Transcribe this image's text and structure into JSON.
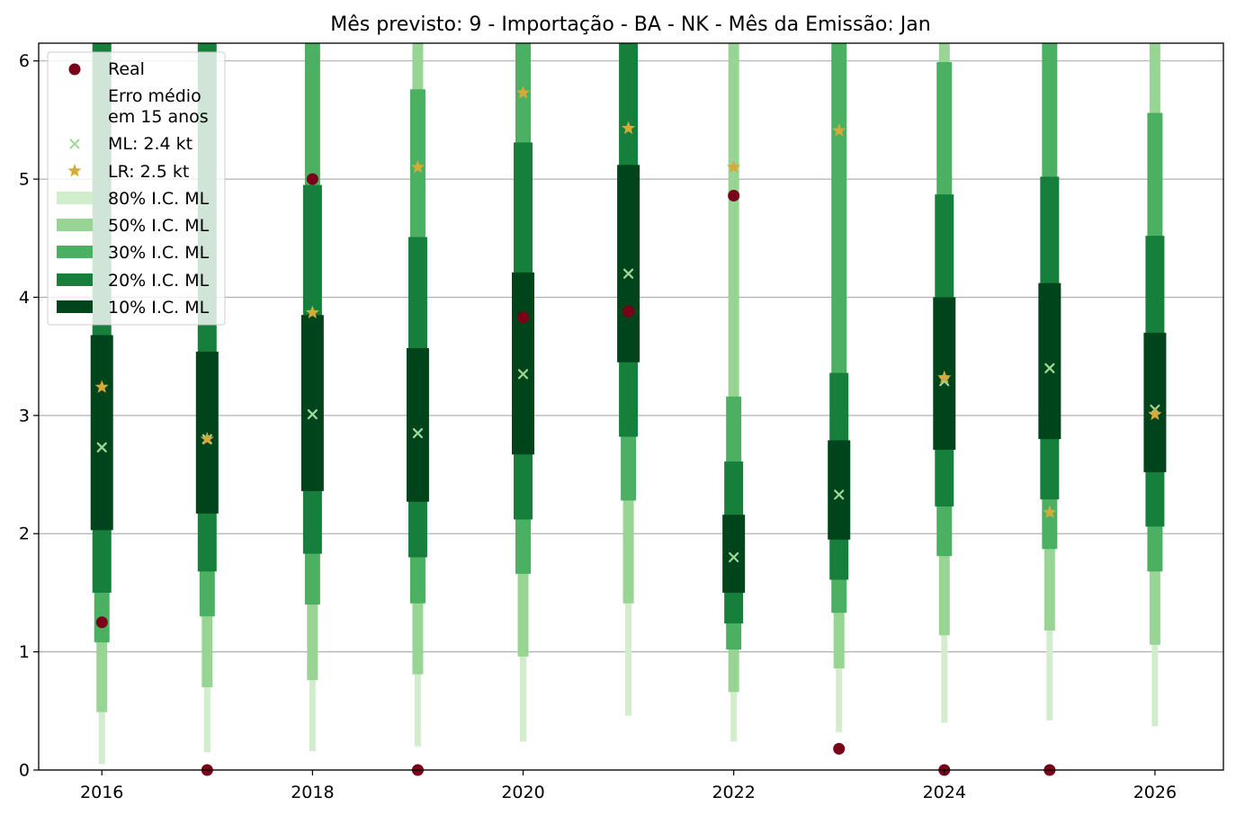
{
  "chart_data": {
    "type": "interval-forecast",
    "title": "Mês previsto: 9 - Importação - BA - NK - Mês da Emissão: Jan",
    "xlabel": "",
    "ylabel": "",
    "xlim": [
      2015.4,
      2026.65
    ],
    "ylim": [
      0,
      6.15
    ],
    "xticks": [
      "2016",
      "2018",
      "2020",
      "2022",
      "2024",
      "2026"
    ],
    "yticks": [
      "0",
      "1",
      "2",
      "3",
      "4",
      "5",
      "6"
    ],
    "grid": "horizontal",
    "legend_position": "top-left",
    "colors": {
      "real": "#7a0019",
      "ml": "#9fd99a",
      "lr": "#d4aa3a",
      "ci80": "#d2edcc",
      "ci50": "#98d594",
      "ci30": "#4bb062",
      "ci20": "#157f3b",
      "ci10": "#00441b"
    },
    "legend": {
      "real": "Real",
      "erro_line1": "Erro médio",
      "erro_line2": "em 15 anos",
      "ml": "ML: 2.4 kt",
      "lr": "LR: 2.5 kt",
      "ci80": "80% I.C. ML",
      "ci50": "50% I.C. ML",
      "ci30": "30% I.C. ML",
      "ci20": "20% I.C. ML",
      "ci10": "10% I.C. ML"
    },
    "years": [
      2016,
      2017,
      2018,
      2019,
      2020,
      2021,
      2022,
      2023,
      2024,
      2025,
      2026
    ],
    "real": [
      1.25,
      0.0,
      5.0,
      0.0,
      3.83,
      3.88,
      4.86,
      0.18,
      0.0,
      0.0,
      null
    ],
    "ml": [
      2.73,
      2.8,
      3.01,
      2.85,
      3.35,
      4.2,
      1.8,
      2.33,
      3.29,
      3.4,
      3.05
    ],
    "lr": [
      3.24,
      2.8,
      3.87,
      5.1,
      5.73,
      5.43,
      5.1,
      5.41,
      3.32,
      2.18,
      3.01
    ],
    "intervals": {
      "ci80": [
        [
          0.05,
          6.15
        ],
        [
          0.15,
          6.15
        ],
        [
          0.16,
          6.15
        ],
        [
          0.2,
          6.15
        ],
        [
          0.24,
          6.15
        ],
        [
          0.46,
          6.15
        ],
        [
          0.24,
          6.15
        ],
        [
          0.32,
          6.15
        ],
        [
          0.4,
          6.15
        ],
        [
          0.42,
          6.15
        ],
        [
          0.37,
          6.15
        ]
      ],
      "ci50": [
        [
          0.49,
          6.15
        ],
        [
          0.7,
          5.95
        ],
        [
          0.76,
          6.15
        ],
        [
          0.81,
          6.15
        ],
        [
          0.96,
          6.15
        ],
        [
          1.41,
          6.15
        ],
        [
          0.66,
          6.15
        ],
        [
          0.86,
          6.15
        ],
        [
          1.14,
          6.15
        ],
        [
          1.18,
          6.15
        ],
        [
          1.06,
          6.15
        ]
      ],
      "ci30": [
        [
          1.08,
          6.15
        ],
        [
          1.3,
          6.15
        ],
        [
          1.4,
          6.15
        ],
        [
          1.41,
          5.76
        ],
        [
          1.66,
          6.15
        ],
        [
          2.28,
          6.15
        ],
        [
          1.02,
          3.16
        ],
        [
          1.33,
          6.15
        ],
        [
          1.81,
          5.99
        ],
        [
          1.87,
          6.15
        ],
        [
          1.68,
          5.56
        ]
      ],
      "ci20": [
        [
          1.5,
          6.15
        ],
        [
          1.68,
          6.15
        ],
        [
          1.83,
          4.95
        ],
        [
          1.8,
          4.51
        ],
        [
          2.12,
          5.31
        ],
        [
          2.82,
          6.15
        ],
        [
          1.24,
          2.61
        ],
        [
          1.61,
          3.36
        ],
        [
          2.23,
          4.87
        ],
        [
          2.29,
          5.02
        ],
        [
          2.06,
          4.52
        ]
      ],
      "ci10": [
        [
          2.03,
          3.68
        ],
        [
          2.17,
          3.54
        ],
        [
          2.36,
          3.85
        ],
        [
          2.27,
          3.57
        ],
        [
          2.67,
          4.21
        ],
        [
          3.45,
          5.12
        ],
        [
          1.5,
          2.16
        ],
        [
          1.95,
          2.79
        ],
        [
          2.71,
          4.0
        ],
        [
          2.8,
          4.12
        ],
        [
          2.52,
          3.7
        ]
      ]
    }
  }
}
